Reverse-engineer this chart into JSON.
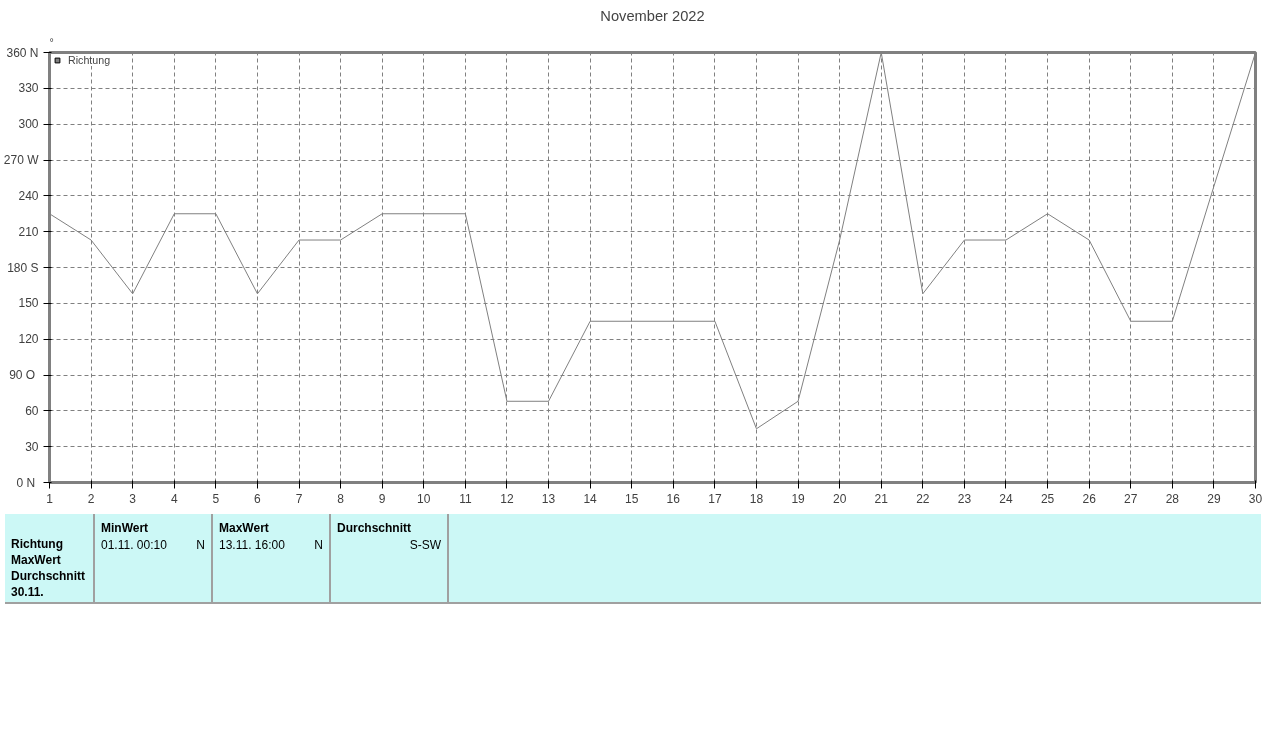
{
  "chart_data": {
    "type": "line",
    "title": "November 2022",
    "ylabel": "°",
    "x": [
      1,
      2,
      3,
      4,
      5,
      6,
      7,
      8,
      9,
      10,
      11,
      12,
      13,
      14,
      15,
      16,
      17,
      18,
      19,
      20,
      21,
      22,
      23,
      24,
      25,
      26,
      27,
      28,
      29,
      30
    ],
    "series": [
      {
        "name": "Richtung",
        "color": "#808080",
        "values": [
          225,
          203,
          158,
          225,
          225,
          158,
          203,
          203,
          225,
          225,
          225,
          68,
          68,
          135,
          135,
          135,
          135,
          45,
          68,
          203,
          360,
          158,
          203,
          203,
          225,
          203,
          135,
          135,
          248,
          360
        ]
      }
    ],
    "xlim": [
      1,
      30
    ],
    "xticks": [
      1,
      2,
      3,
      4,
      5,
      6,
      7,
      8,
      9,
      10,
      11,
      12,
      13,
      14,
      15,
      16,
      17,
      18,
      19,
      20,
      21,
      22,
      23,
      24,
      25,
      26,
      27,
      28,
      29,
      30
    ],
    "ylim": [
      0,
      360
    ],
    "yticks": [
      {
        "value": 0,
        "label": "0  N"
      },
      30,
      60,
      {
        "value": 90,
        "label": "90  O"
      },
      120,
      150,
      {
        "value": 180,
        "label": "180 S"
      },
      210,
      240,
      {
        "value": 270,
        "label": "270 W"
      },
      300,
      330,
      {
        "value": 360,
        "label": "360 N"
      }
    ],
    "grid": true,
    "legend": "top left",
    "marker": "none",
    "line_style": "solid",
    "annotations": [
      "Richtung",
      "MaxWert",
      "Durchschnitt",
      "30.11.",
      "MinWert",
      "01.11.  00:10",
      "N",
      "MaxWert",
      "13.11.  16:00",
      "N",
      "Durchschnitt",
      "S-SW"
    ]
  }
}
